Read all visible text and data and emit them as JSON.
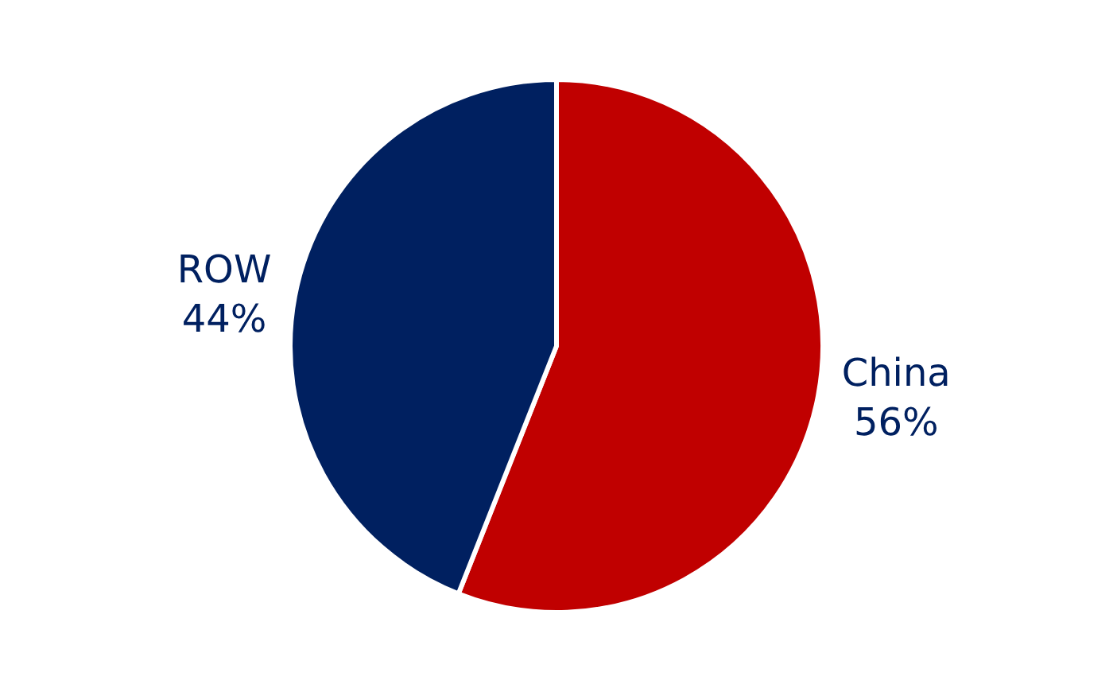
{
  "chart_data": {
    "type": "pie",
    "categories": [
      "China",
      "ROW"
    ],
    "values": [
      56,
      44
    ],
    "value_labels": [
      "56%",
      "44%"
    ],
    "colors": [
      "#c00000",
      "#002060"
    ],
    "legend": false
  }
}
